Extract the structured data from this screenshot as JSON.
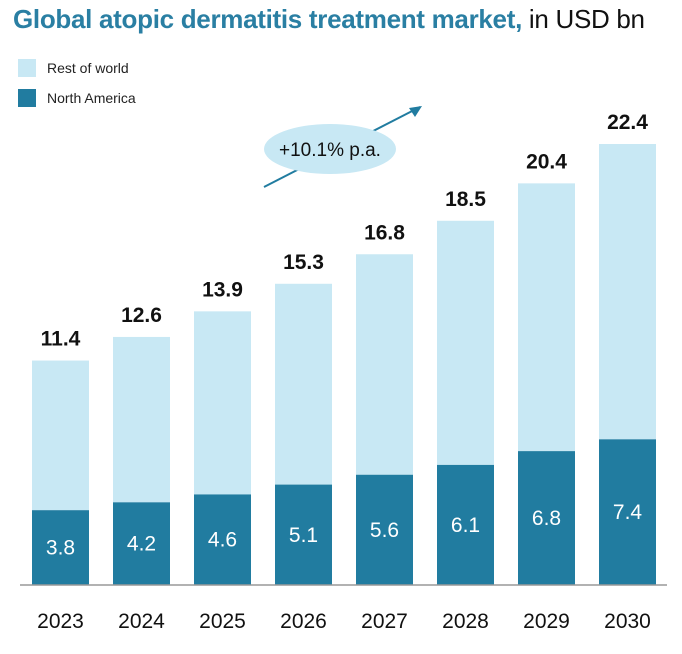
{
  "title": {
    "bold": "Global atopic dermatitis treatment market,",
    "normal": " in USD bn"
  },
  "colors": {
    "rest_of_world": "#c8e8f4",
    "north_america": "#217ca0",
    "title": "#2a7fa3",
    "axis": "#999999",
    "arrow": "#217ca0"
  },
  "legend": [
    {
      "label": "Rest of world",
      "color": "#c8e8f4"
    },
    {
      "label": "North America",
      "color": "#217ca0"
    }
  ],
  "annotation": {
    "text": "+10.1% p.a."
  },
  "chart_data": {
    "type": "bar",
    "stacked": true,
    "title": "Global atopic dermatitis treatment market, in USD bn",
    "categories": [
      "2023",
      "2024",
      "2025",
      "2026",
      "2027",
      "2028",
      "2029",
      "2030"
    ],
    "series": [
      {
        "name": "North America",
        "values": [
          3.8,
          4.2,
          4.6,
          5.1,
          5.6,
          6.1,
          6.8,
          7.4
        ]
      },
      {
        "name": "Rest of world",
        "values": [
          7.6,
          8.4,
          9.3,
          10.2,
          11.2,
          12.4,
          13.6,
          15.0
        ]
      }
    ],
    "totals": [
      11.4,
      12.6,
      13.9,
      15.3,
      16.8,
      18.5,
      20.4,
      22.4
    ],
    "labels": {
      "totals": [
        "11.4",
        "12.6",
        "13.9",
        "15.3",
        "16.8",
        "18.5",
        "20.4",
        "22.4"
      ],
      "north_america": [
        "3.8",
        "4.2",
        "4.6",
        "5.1",
        "5.6",
        "6.1",
        "6.8",
        "7.4"
      ]
    },
    "annotation": "+10.1% p.a.",
    "xlabel": "",
    "ylabel": "",
    "ylim": [
      0,
      22.4
    ],
    "legend_position": "top-left",
    "grid": false
  }
}
